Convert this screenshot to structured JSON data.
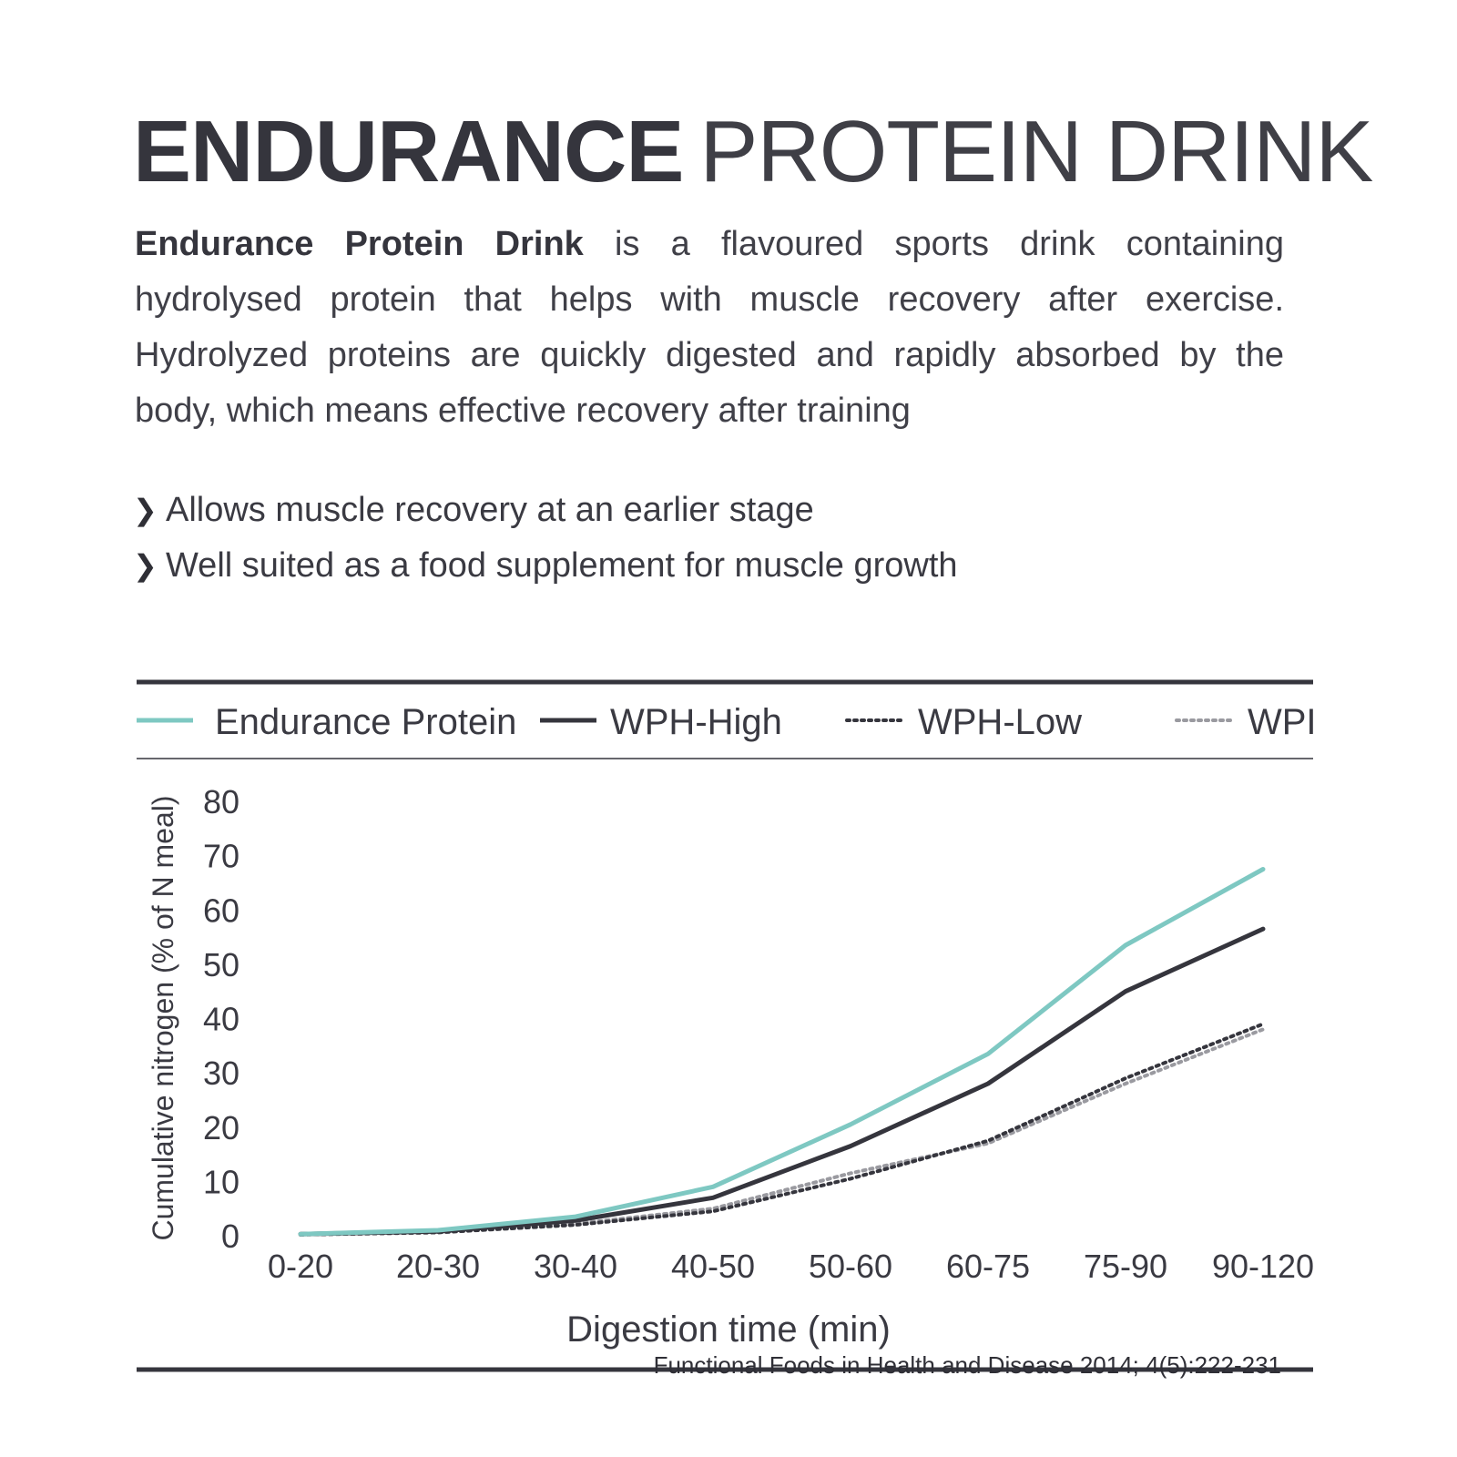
{
  "header": {
    "title_bold": "ENDURANCE",
    "title_light": "PROTEIN DRINK"
  },
  "intro": {
    "bold": "Endurance Protein Drink",
    "rest": " is a flavoured sports drink containing hydrolysed protein that helps with muscle recovery after exercise. Hydrolyzed proteins are quickly digested and rapidly absorbed by the body, which means effective recovery after training"
  },
  "bullets": [
    "Allows muscle recovery at an earlier stage",
    "Well suited as a food supplement for muscle growth"
  ],
  "colors": {
    "teal": "#7ec8c2",
    "dark": "#35353d",
    "grey": "#9a9aa0",
    "rule": "#35353d"
  },
  "chart_data": {
    "type": "line",
    "title": "",
    "xlabel": "Digestion time (min)",
    "ylabel": "Cumulative nitrogen (% of N meal)",
    "categories": [
      "0-20",
      "20-30",
      "30-40",
      "40-50",
      "50-60",
      "60-75",
      "75-90",
      "90-120"
    ],
    "ylim": [
      0,
      80
    ],
    "yticks": [
      0,
      10,
      20,
      30,
      40,
      50,
      60,
      70,
      80
    ],
    "grid": false,
    "legend_position": "top",
    "series": [
      {
        "name": "Endurance Protein",
        "style": "solid",
        "color": "#7ec8c2",
        "values": [
          0.3,
          1.0,
          3.5,
          9.0,
          20.5,
          33.5,
          53.5,
          67.5
        ]
      },
      {
        "name": "WPH-High",
        "style": "solid",
        "color": "#35353d",
        "values": [
          0.3,
          0.8,
          2.8,
          7.0,
          16.5,
          28.0,
          45.0,
          56.5
        ]
      },
      {
        "name": "WPH-Low",
        "style": "dotted",
        "color": "#35353d",
        "values": [
          0.2,
          0.6,
          2.0,
          4.5,
          10.5,
          17.5,
          29.0,
          39.0
        ]
      },
      {
        "name": "WPI",
        "style": "dotted",
        "color": "#9a9aa0",
        "values": [
          0.2,
          0.6,
          2.2,
          5.0,
          11.5,
          17.0,
          28.0,
          38.0
        ]
      }
    ]
  },
  "citation": "Functional Foods in Health and Disease 2014; 4(5):222-231"
}
